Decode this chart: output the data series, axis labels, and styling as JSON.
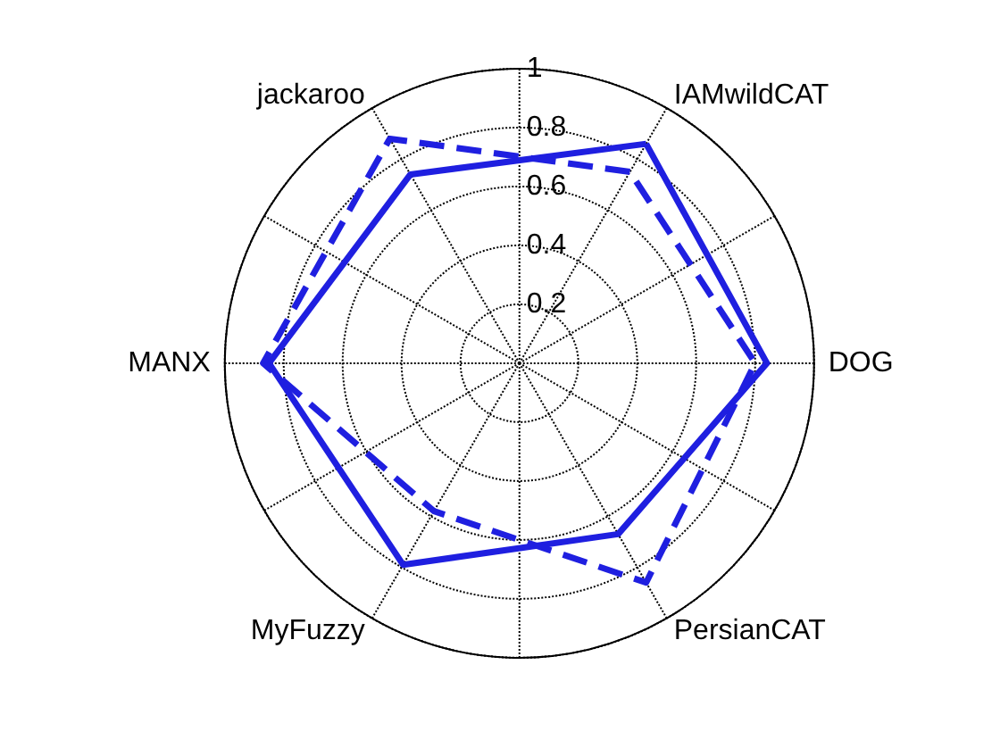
{
  "chart_data": {
    "type": "radar",
    "categories": [
      "IAMwildCAT",
      "DOG",
      "PersianCAT",
      "MyFuzzy",
      "MANX",
      "jackaroo"
    ],
    "ylim": [
      0,
      1
    ],
    "yticks": [
      0.2,
      0.4,
      0.6,
      0.8,
      1
    ],
    "marker": "none",
    "grid": true,
    "series": [
      {
        "color": "#1f1fe0",
        "line_style": "solid",
        "values": [
          0.86,
          0.84,
          0.67,
          0.79,
          0.85,
          0.74
        ]
      },
      {
        "color": "#1f1fe0",
        "line_style": "dashed",
        "values": [
          0.75,
          0.8,
          0.86,
          0.58,
          0.87,
          0.88
        ]
      }
    ]
  }
}
